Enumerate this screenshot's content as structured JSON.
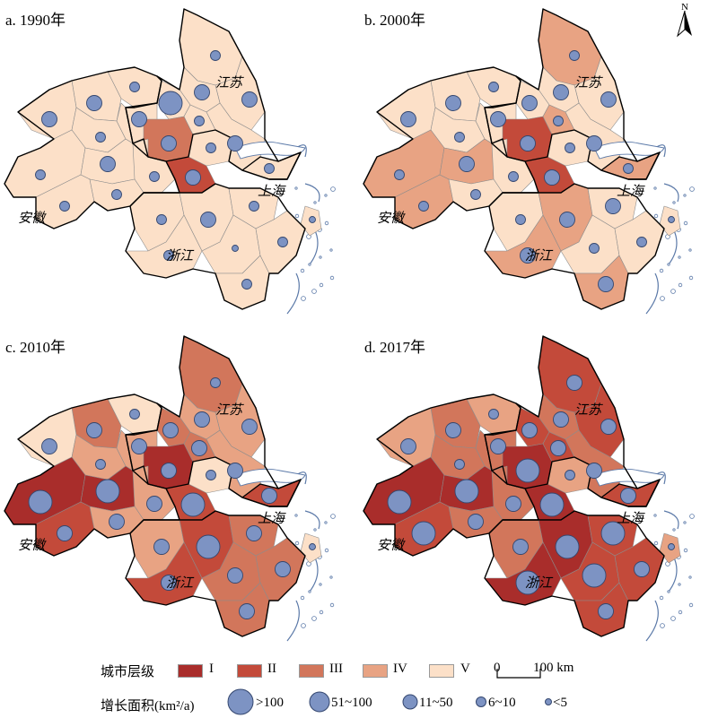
{
  "panels": [
    {
      "label": "a. 1990年",
      "tiers": [
        "V",
        "V",
        "V",
        "V",
        "V",
        "V",
        "V",
        "V",
        "V",
        "III",
        "V",
        "V",
        "V",
        "V",
        "V",
        "V",
        "V",
        "V",
        "V",
        "II",
        "V",
        "V",
        "V",
        "V",
        "V",
        "V",
        "V",
        "V"
      ],
      "circles": [
        2,
        3,
        3,
        4,
        2,
        3,
        3,
        2,
        3,
        3,
        2,
        3,
        2,
        2,
        2,
        3,
        2,
        2,
        2,
        3,
        2,
        3,
        2,
        2,
        1,
        2,
        2,
        1
      ]
    },
    {
      "label": "b. 2000年",
      "tiers": [
        "IV",
        "V",
        "V",
        "V",
        "V",
        "V",
        "V",
        "V",
        "V",
        "II",
        "V",
        "V",
        "IV",
        "IV",
        "IV",
        "IV",
        "V",
        "IV",
        "V",
        "II",
        "V",
        "IV",
        "V",
        "IV",
        "V",
        "IV",
        "V",
        "V"
      ],
      "circles": [
        2,
        3,
        3,
        3,
        2,
        3,
        3,
        2,
        3,
        3,
        2,
        3,
        2,
        2,
        2,
        3,
        2,
        2,
        2,
        3,
        2,
        3,
        3,
        3,
        2,
        3,
        2,
        1
      ]
    },
    {
      "label": "c. 2010年",
      "tiers": [
        "III",
        "IV",
        "IV",
        "III",
        "V",
        "III",
        "V",
        "IV",
        "IV",
        "I",
        "V",
        "IV",
        "III",
        "II",
        "I",
        "I",
        "IV",
        "II",
        "IV",
        "II",
        "IV",
        "II",
        "III",
        "II",
        "III",
        "III",
        "III",
        "V"
      ],
      "circles": [
        2,
        3,
        3,
        3,
        2,
        3,
        3,
        2,
        3,
        3,
        2,
        3,
        3,
        3,
        4,
        4,
        3,
        3,
        3,
        4,
        3,
        4,
        3,
        3,
        3,
        3,
        3,
        1
      ]
    },
    {
      "label": "d. 2017年",
      "tiers": [
        "II",
        "II",
        "III",
        "II",
        "IV",
        "III",
        "IV",
        "III",
        "III",
        "I",
        "IV",
        "III",
        "II",
        "II",
        "I",
        "I",
        "III",
        "II",
        "III",
        "I",
        "III",
        "I",
        "II",
        "I",
        "II",
        "II",
        "II",
        "IV"
      ],
      "circles": [
        3,
        3,
        3,
        3,
        2,
        3,
        3,
        2,
        3,
        4,
        2,
        3,
        3,
        3,
        4,
        4,
        3,
        4,
        3,
        4,
        3,
        4,
        4,
        4,
        4,
        3,
        3,
        1
      ]
    }
  ],
  "province_labels": [
    "江苏",
    "上海",
    "安徽",
    "浙江"
  ],
  "north_arrow": "N",
  "legend": {
    "tier_title": "城市层级",
    "tiers": [
      {
        "key": "I",
        "label": "I",
        "color": "#a92d2b"
      },
      {
        "key": "II",
        "label": "II",
        "color": "#c34a3a"
      },
      {
        "key": "III",
        "label": "III",
        "color": "#d2765b"
      },
      {
        "key": "IV",
        "label": "IV",
        "color": "#e8a383"
      },
      {
        "key": "V",
        "label": "V",
        "color": "#fce0c8"
      }
    ],
    "scale_start": "0",
    "scale_end": "100 km",
    "growth_title": "增长面积(km²/a)",
    "bubbles": [
      ">100",
      "51~100",
      "11~50",
      "6~10",
      "<5"
    ],
    "bubble_color": "#7d93c3"
  }
}
